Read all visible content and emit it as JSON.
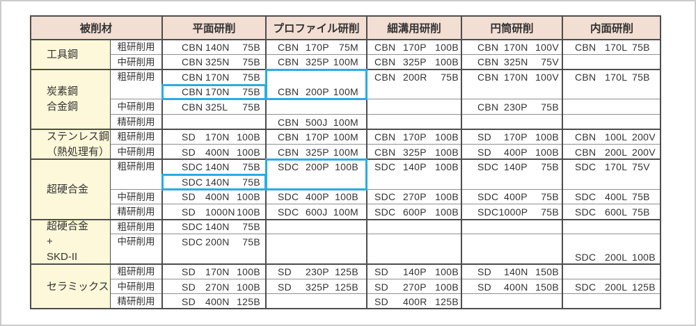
{
  "table": {
    "header": {
      "material": "被削材",
      "columns": [
        "平面研削",
        "プロファイル研削",
        "細溝用研削",
        "円筒研削",
        "内面研削"
      ]
    },
    "colors": {
      "header_bg": "#f2ded3",
      "material_bg": "#fcf8d9",
      "highlight": "#29abe2",
      "border_dark": "#4d4d4d",
      "border_light": "#8e8e8e",
      "text": "#333333"
    },
    "sections": [
      {
        "material": [
          "工具鋼"
        ],
        "rows": [
          {
            "label": "粗研削用",
            "h": 1,
            "cells": [
              {
                "t": [
                  "CBN",
                  "140N",
                  "75B"
                ]
              },
              {
                "t": [
                  "CBN",
                  "170P",
                  "75M"
                ]
              },
              {
                "t": [
                  "CBN",
                  "170P",
                  "100B"
                ]
              },
              {
                "t": [
                  "CBN",
                  "170N",
                  "100V"
                ]
              },
              {
                "t": [
                  "CBN",
                  "170L",
                  "75B"
                ]
              }
            ]
          },
          {
            "label": "中研削用",
            "h": 1,
            "cells": [
              {
                "t": [
                  "CBN",
                  "325N",
                  "75B"
                ]
              },
              {
                "t": [
                  "CBN",
                  "325P",
                  "100M"
                ]
              },
              {
                "t": [
                  "CBN",
                  "325P",
                  "100B"
                ]
              },
              {
                "t": [
                  "CBN",
                  "325N",
                  "75V"
                ]
              },
              null
            ]
          }
        ]
      },
      {
        "material": [
          "炭素鋼",
          "合金鋼"
        ],
        "rows": [
          {
            "label": "粗研削用",
            "h": 2,
            "cells": [
              {
                "stack": [
                  {
                    "t": [
                      "CBN",
                      "170N",
                      "75B"
                    ]
                  },
                  {
                    "t": [
                      "CBN",
                      "170N",
                      "75B"
                    ],
                    "hl": true
                  }
                ]
              },
              {
                "t": [
                  "CBN",
                  "200P",
                  "100M"
                ],
                "valign": "bottom",
                "hl": true
              },
              {
                "t": [
                  "CBN",
                  "200R",
                  "75B"
                ],
                "valign": "top"
              },
              {
                "t": [
                  "CBN",
                  "170N",
                  "100V"
                ],
                "valign": "top"
              },
              {
                "t": [
                  "CBN",
                  "170L",
                  "75B"
                ],
                "valign": "top"
              }
            ]
          },
          {
            "label": "中研削用",
            "h": 1,
            "cells": [
              {
                "t": [
                  "CBN",
                  "325L",
                  "75B"
                ]
              },
              null,
              null,
              {
                "t": [
                  "CBN",
                  "230P",
                  "75B"
                ]
              },
              null
            ]
          },
          {
            "label": "精研削用",
            "h": 1,
            "cells": [
              null,
              {
                "t": [
                  "CBN",
                  "500J",
                  "100M"
                ]
              },
              null,
              null,
              null
            ]
          }
        ]
      },
      {
        "material": [
          "ステンレス鋼",
          "（熱処理有）"
        ],
        "rows": [
          {
            "label": "粗研削用",
            "h": 1,
            "cells": [
              {
                "t": [
                  "SD",
                  "170N",
                  "100B"
                ]
              },
              {
                "t": [
                  "CBN",
                  "170P",
                  "100M"
                ]
              },
              {
                "t": [
                  "CBN",
                  "170P",
                  "100B"
                ]
              },
              {
                "t": [
                  "SD",
                  "170P",
                  "100B"
                ]
              },
              {
                "t": [
                  "CBN",
                  "100L",
                  "200V"
                ]
              }
            ]
          },
          {
            "label": "中研削用",
            "h": 1,
            "cells": [
              {
                "t": [
                  "SD",
                  "400N",
                  "100B"
                ]
              },
              {
                "t": [
                  "CBN",
                  "325P",
                  "100M"
                ]
              },
              {
                "t": [
                  "CBN",
                  "325P",
                  "100B"
                ]
              },
              {
                "t": [
                  "SD",
                  "400P",
                  "100B"
                ]
              },
              {
                "t": [
                  "CBN",
                  "200L",
                  "200V"
                ]
              }
            ]
          }
        ]
      },
      {
        "material": [
          "超硬合金"
        ],
        "rows": [
          {
            "label": "粗研削用",
            "h": 2,
            "cells": [
              {
                "stack": [
                  {
                    "t": [
                      "SDC",
                      "140N",
                      "75B"
                    ]
                  },
                  {
                    "t": [
                      "SDC",
                      "140N",
                      "75B"
                    ],
                    "hl": true
                  }
                ]
              },
              {
                "t": [
                  "SDC",
                  "200P",
                  "100B"
                ],
                "valign": "top",
                "hl": true
              },
              {
                "t": [
                  "SDC",
                  "140P",
                  "100B"
                ],
                "valign": "top"
              },
              {
                "t": [
                  "SDC",
                  "140P",
                  "75B"
                ],
                "valign": "top"
              },
              {
                "t": [
                  "SDC",
                  "170L",
                  "75V"
                ],
                "valign": "top"
              }
            ]
          },
          {
            "label": "中研削用",
            "h": 1,
            "cells": [
              {
                "t": [
                  "SD",
                  "400N",
                  "100B"
                ]
              },
              {
                "t": [
                  "SDC",
                  "400P",
                  "100B"
                ]
              },
              {
                "t": [
                  "SDC",
                  "270P",
                  "100B"
                ]
              },
              {
                "t": [
                  "SDC",
                  "400P",
                  "75B"
                ]
              },
              {
                "t": [
                  "SDC",
                  "400L",
                  "75B"
                ]
              }
            ]
          },
          {
            "label": "精研削用",
            "h": 1,
            "cells": [
              {
                "t": [
                  "SD",
                  "1000N",
                  "100B"
                ]
              },
              {
                "t": [
                  "SDC",
                  "600J",
                  "100M"
                ]
              },
              {
                "t": [
                  "SDC",
                  "600P",
                  "100B"
                ]
              },
              {
                "t": [
                  "SDC1000P",
                  "",
                  "75B"
                ]
              },
              {
                "t": [
                  "SDC",
                  "600L",
                  "75B"
                ]
              }
            ]
          }
        ]
      },
      {
        "material": [
          "超硬合金",
          "+",
          "SKD-II"
        ],
        "rows": [
          {
            "label": "粗研削用",
            "h": 1,
            "cells": [
              {
                "t": [
                  "SDC",
                  "140N",
                  "75B"
                ]
              },
              null,
              null,
              null,
              null
            ]
          },
          {
            "label": "中研削用",
            "h": 2,
            "cells": [
              {
                "t": [
                  "SDC",
                  "200N",
                  "75B"
                ],
                "valign": "top"
              },
              null,
              null,
              null,
              {
                "t": [
                  "SDC",
                  "200L",
                  "100B"
                ],
                "valign": "bottom"
              }
            ]
          }
        ]
      },
      {
        "material": [
          "セラミックス"
        ],
        "rows": [
          {
            "label": "粗研削用",
            "h": 1,
            "cells": [
              {
                "t": [
                  "SD",
                  "170N",
                  "100B"
                ]
              },
              {
                "t": [
                  "SD",
                  "230P",
                  "125B"
                ]
              },
              {
                "t": [
                  "SD",
                  "140P",
                  "100B"
                ]
              },
              {
                "t": [
                  "SD",
                  "140N",
                  "150B"
                ]
              },
              null
            ]
          },
          {
            "label": "中研削用",
            "h": 1,
            "cells": [
              {
                "t": [
                  "SD",
                  "270N",
                  "100B"
                ]
              },
              {
                "t": [
                  "SD",
                  "325P",
                  "125B"
                ]
              },
              {
                "t": [
                  "SD",
                  "270P",
                  "100B"
                ]
              },
              {
                "t": [
                  "SD",
                  "400N",
                  "150B"
                ]
              },
              {
                "t": [
                  "SDC",
                  "200L",
                  "125B"
                ]
              }
            ]
          },
          {
            "label": "精研削用",
            "h": 1,
            "cells": [
              {
                "t": [
                  "SD",
                  "400N",
                  "125B"
                ]
              },
              null,
              {
                "t": [
                  "SD",
                  "400R",
                  "125B"
                ]
              },
              null,
              null
            ]
          }
        ]
      }
    ]
  }
}
